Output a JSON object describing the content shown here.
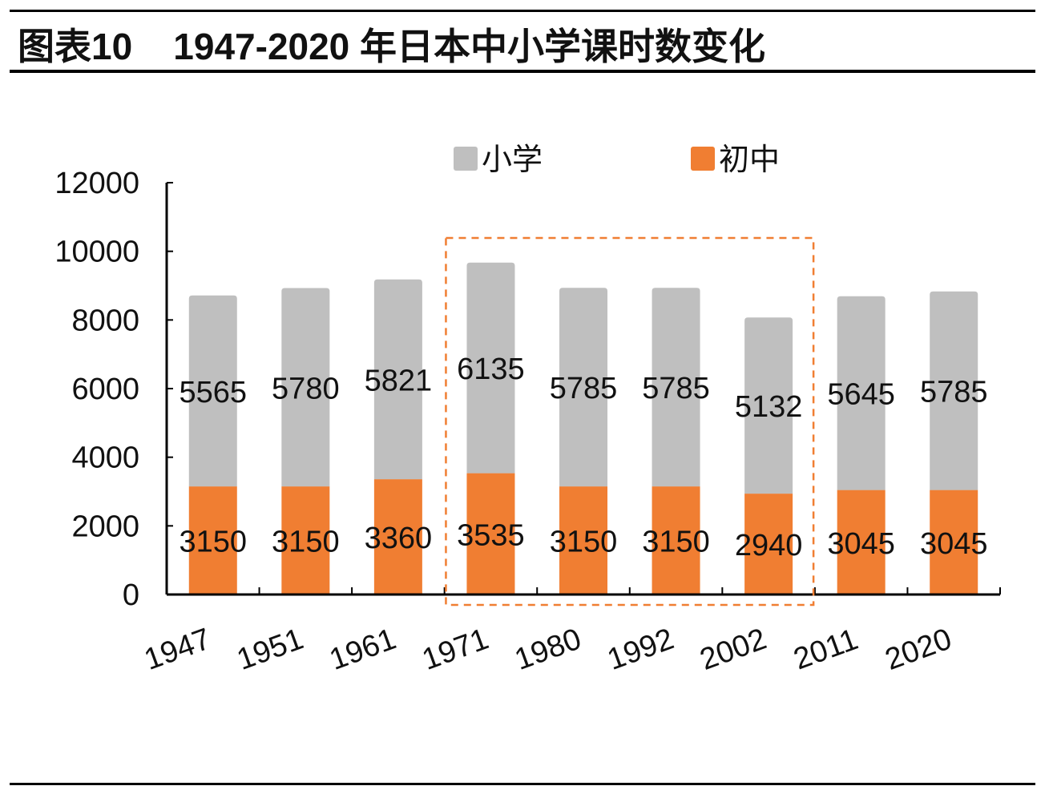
{
  "title": "图表10    1947-2020 年日本中小学课时数变化",
  "chart_data": {
    "type": "bar",
    "stacked": true,
    "title": "1947-2020 年日本中小学课时数变化",
    "categories": [
      "1947",
      "1951",
      "1961",
      "1971",
      "1980",
      "1992",
      "2002",
      "2011",
      "2020"
    ],
    "series": [
      {
        "name": "初中",
        "color": "#F07E32",
        "values": [
          3150,
          3150,
          3360,
          3535,
          3150,
          3150,
          2940,
          3045,
          3045
        ]
      },
      {
        "name": "小学",
        "color": "#BFBFBF",
        "values": [
          5565,
          5780,
          5821,
          6135,
          5785,
          5785,
          5132,
          5645,
          5785
        ]
      }
    ],
    "ylim": [
      0,
      12000
    ],
    "yticks": [
      "0",
      "2000",
      "4000",
      "6000",
      "8000",
      "10000",
      "12000"
    ],
    "legend_position": "top",
    "legend": [
      "小学",
      "初中"
    ],
    "highlight_box": {
      "from_category": "1971",
      "to_category": "2002",
      "color": "#F07E32",
      "style": "dashed"
    },
    "grid": false
  }
}
